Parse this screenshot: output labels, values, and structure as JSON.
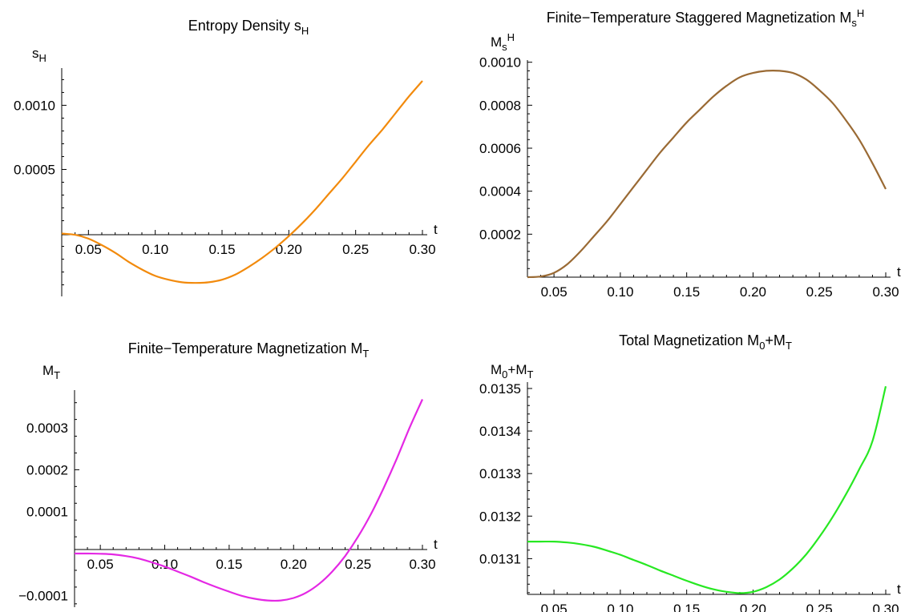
{
  "chart_data": [
    {
      "type": "line",
      "title": "Entropy Density s",
      "title_sub": "H",
      "xlabel": "t",
      "ylabel": "s",
      "ylabel_sub": "H",
      "xlim": [
        0.03,
        0.3
      ],
      "ylim": [
        -0.00049,
        0.00129
      ],
      "xticks": [
        "0.05",
        "0.10",
        "0.15",
        "0.20",
        "0.25",
        "0.30"
      ],
      "xtick_values": [
        0.05,
        0.1,
        0.15,
        0.2,
        0.25,
        0.3
      ],
      "yticks": [
        "0.0005",
        "0.0010"
      ],
      "ytick_values": [
        0.0005,
        0.001
      ],
      "color": "#f28a0c",
      "series": [
        {
          "x": [
            0.03,
            0.04,
            0.05,
            0.06,
            0.07,
            0.08,
            0.09,
            0.1,
            0.11,
            0.12,
            0.13,
            0.14,
            0.15,
            0.16,
            0.17,
            0.18,
            0.19,
            0.2,
            0.21,
            0.22,
            0.23,
            0.24,
            0.25,
            0.26,
            0.27,
            0.28,
            0.29,
            0.3
          ],
          "y": [
            0.0,
            -1e-05,
            -4e-05,
            -9e-05,
            -0.00015,
            -0.00022,
            -0.00028,
            -0.00033,
            -0.00036,
            -0.00038,
            -0.000385,
            -0.00038,
            -0.00036,
            -0.00032,
            -0.00026,
            -0.00019,
            -0.00011,
            -2e-05,
            8e-05,
            0.00019,
            0.00031,
            0.00043,
            0.00056,
            0.00069,
            0.00081,
            0.00094,
            0.00107,
            0.00119
          ]
        }
      ]
    },
    {
      "type": "line",
      "title": "Finite−Temperature Staggered Magnetization M",
      "title_sub": "s",
      "title_sup": "H",
      "xlabel": "t",
      "ylabel": "M",
      "ylabel_sub": "s",
      "ylabel_sup": "H",
      "xlim": [
        0.03,
        0.3
      ],
      "ylim": [
        0.0,
        0.00101
      ],
      "xticks": [
        "0.05",
        "0.10",
        "0.15",
        "0.20",
        "0.25",
        "0.30"
      ],
      "xtick_values": [
        0.05,
        0.1,
        0.15,
        0.2,
        0.25,
        0.3
      ],
      "yticks": [
        "0.0002",
        "0.0004",
        "0.0006",
        "0.0008",
        "0.0010"
      ],
      "ytick_values": [
        0.0002,
        0.0004,
        0.0006,
        0.0008,
        0.001
      ],
      "color": "#9a6a34",
      "series": [
        {
          "x": [
            0.03,
            0.04,
            0.05,
            0.06,
            0.07,
            0.08,
            0.09,
            0.1,
            0.11,
            0.12,
            0.13,
            0.14,
            0.15,
            0.16,
            0.17,
            0.18,
            0.19,
            0.2,
            0.21,
            0.22,
            0.23,
            0.24,
            0.25,
            0.26,
            0.27,
            0.28,
            0.29,
            0.3
          ],
          "y": [
            0.0,
            3e-06,
            2e-05,
            6e-05,
            0.00012,
            0.00019,
            0.00026,
            0.00034,
            0.00042,
            0.0005,
            0.00058,
            0.00065,
            0.00072,
            0.00078,
            0.00084,
            0.00089,
            0.00093,
            0.00095,
            0.00096,
            0.00096,
            0.00095,
            0.00092,
            0.00087,
            0.00081,
            0.00073,
            0.00064,
            0.00053,
            0.00041
          ]
        }
      ]
    },
    {
      "type": "line",
      "title": "Finite−Temperature Magnetization M",
      "title_sub": "T",
      "xlabel": "t",
      "ylabel": "M",
      "ylabel_sub": "T",
      "xlim": [
        0.03,
        0.3
      ],
      "ylim": [
        -0.000128,
        0.00039
      ],
      "xticks": [
        "0.05",
        "0.10",
        "0.15",
        "0.20",
        "0.25",
        "0.30"
      ],
      "xtick_values": [
        0.05,
        0.1,
        0.15,
        0.2,
        0.25,
        0.3
      ],
      "yticks": [
        "−0.0001",
        "0.0001",
        "0.0002",
        "0.0003"
      ],
      "ytick_values": [
        -0.0001,
        0.0001,
        0.0002,
        0.0003
      ],
      "color": "#e428e4",
      "series": [
        {
          "x": [
            0.03,
            0.04,
            0.05,
            0.06,
            0.07,
            0.08,
            0.09,
            0.1,
            0.11,
            0.12,
            0.13,
            0.14,
            0.15,
            0.16,
            0.17,
            0.18,
            0.19,
            0.2,
            0.21,
            0.22,
            0.23,
            0.24,
            0.25,
            0.26,
            0.27,
            0.28,
            0.29,
            0.3
          ],
          "y": [
            0.0,
            0.0,
            -5e-07,
            -2e-06,
            -6e-06,
            -1.2e-05,
            -2.1e-05,
            -3.1e-05,
            -4.3e-05,
            -5.5e-05,
            -6.8e-05,
            -8e-05,
            -9.1e-05,
            -0.000101,
            -0.000108,
            -0.000112,
            -0.000112,
            -0.000106,
            -9.3e-05,
            -7.2e-05,
            -4.3e-05,
            -6e-06,
            4e-05,
            9.4e-05,
            0.000157,
            0.000226,
            0.0003,
            0.000368
          ]
        }
      ]
    },
    {
      "type": "line",
      "title": "Total Magnetization M",
      "title_sub": "0",
      "title_mid": "+M",
      "title_sub2": "T",
      "xlabel": "t",
      "ylabel": "M",
      "ylabel_sub": "0",
      "ylabel_mid": "+M",
      "ylabel_sub2": "T",
      "xlim": [
        0.03,
        0.3
      ],
      "ylim": [
        0.013016,
        0.013515
      ],
      "xticks": [
        "0.05",
        "0.10",
        "0.15",
        "0.20",
        "0.25",
        "0.30"
      ],
      "xtick_values": [
        0.05,
        0.1,
        0.15,
        0.2,
        0.25,
        0.3
      ],
      "yticks": [
        "0.0131",
        "0.0132",
        "0.0133",
        "0.0134",
        "0.0135"
      ],
      "ytick_values": [
        0.0131,
        0.0132,
        0.0133,
        0.0134,
        0.0135
      ],
      "color": "#27e822",
      "series": [
        {
          "x": [
            0.03,
            0.04,
            0.05,
            0.06,
            0.07,
            0.08,
            0.09,
            0.1,
            0.11,
            0.12,
            0.13,
            0.14,
            0.15,
            0.16,
            0.17,
            0.18,
            0.19,
            0.2,
            0.21,
            0.22,
            0.23,
            0.24,
            0.25,
            0.26,
            0.27,
            0.28,
            0.29,
            0.3
          ],
          "y": [
            0.01314,
            0.01314,
            0.01314,
            0.013138,
            0.013134,
            0.013128,
            0.013119,
            0.013109,
            0.013097,
            0.013085,
            0.013072,
            0.01306,
            0.013048,
            0.013037,
            0.013028,
            0.013022,
            0.013019,
            0.013022,
            0.013033,
            0.013051,
            0.013077,
            0.01311,
            0.013151,
            0.013198,
            0.013251,
            0.01331,
            0.013376,
            0.013505
          ]
        }
      ]
    }
  ]
}
